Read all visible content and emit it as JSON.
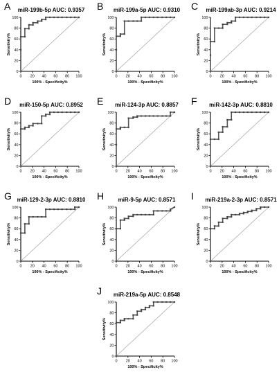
{
  "chart_data": [
    {
      "type": "line",
      "panel": "A",
      "title": "miR-199b-5p AUC: 0.9357",
      "xlabel": "100% - Specificity%",
      "ylabel": "Sensitivity%",
      "xlim": [
        0,
        100
      ],
      "ylim": [
        0,
        100
      ],
      "xticks": [
        0,
        20,
        40,
        60,
        80,
        100
      ],
      "yticks": [
        0,
        20,
        40,
        60,
        80,
        100
      ],
      "diagonal": true,
      "series": [
        {
          "x": [
            0,
            0,
            0,
            7,
            7,
            14,
            14,
            21,
            21,
            29,
            29,
            36,
            36,
            43,
            43,
            50,
            57,
            64,
            71,
            79,
            86,
            93,
            100
          ],
          "y": [
            0,
            40,
            64,
            64,
            79,
            79,
            86,
            86,
            90,
            90,
            93,
            93,
            96,
            96,
            100,
            100,
            100,
            100,
            100,
            100,
            100,
            100,
            100
          ]
        }
      ]
    },
    {
      "type": "line",
      "panel": "B",
      "title": "miR-199a-5p AUC: 0.9310",
      "xlabel": "100% - Specificity%",
      "ylabel": "Sensitivity%",
      "xlim": [
        0,
        100
      ],
      "ylim": [
        0,
        100
      ],
      "xticks": [
        0,
        20,
        40,
        60,
        80,
        100
      ],
      "yticks": [
        0,
        20,
        40,
        60,
        80,
        100
      ],
      "diagonal": true,
      "series": [
        {
          "x": [
            0,
            0,
            0,
            7,
            7,
            14,
            14,
            21,
            29,
            36,
            43,
            43,
            50,
            57,
            64,
            71,
            79,
            86,
            93,
            100
          ],
          "y": [
            0,
            40,
            65,
            65,
            69,
            69,
            93,
            93,
            93,
            93,
            93,
            100,
            100,
            100,
            100,
            100,
            100,
            100,
            100,
            100
          ]
        }
      ]
    },
    {
      "type": "line",
      "panel": "C",
      "title": "miR-199ab-3p AUC: 0.9214",
      "xlabel": "100% - Specificity%",
      "ylabel": "Sensitivity%",
      "xlim": [
        0,
        100
      ],
      "ylim": [
        0,
        100
      ],
      "xticks": [
        0,
        20,
        40,
        60,
        80,
        100
      ],
      "yticks": [
        0,
        20,
        40,
        60,
        80,
        100
      ],
      "diagonal": true,
      "series": [
        {
          "x": [
            0,
            0,
            0,
            7,
            7,
            14,
            21,
            21,
            29,
            29,
            36,
            36,
            43,
            43,
            50,
            57,
            64,
            71,
            79,
            86,
            93,
            100
          ],
          "y": [
            0,
            30,
            55,
            55,
            80,
            80,
            80,
            87,
            87,
            90,
            90,
            93,
            93,
            100,
            100,
            100,
            100,
            100,
            100,
            100,
            100,
            100
          ]
        }
      ]
    },
    {
      "type": "line",
      "panel": "D",
      "title": "miR-150-5p AUC: 0.8952",
      "xlabel": "100% - Specificity%",
      "ylabel": "Sensitivity%",
      "xlim": [
        0,
        100
      ],
      "ylim": [
        0,
        100
      ],
      "xticks": [
        0,
        20,
        40,
        60,
        80,
        100
      ],
      "yticks": [
        0,
        20,
        40,
        60,
        80,
        100
      ],
      "diagonal": true,
      "series": [
        {
          "x": [
            0,
            0,
            7,
            7,
            14,
            14,
            21,
            21,
            29,
            36,
            36,
            43,
            43,
            50,
            50,
            57,
            64,
            71,
            79,
            86,
            93,
            100
          ],
          "y": [
            0,
            69,
            69,
            72,
            72,
            75,
            75,
            79,
            79,
            79,
            93,
            93,
            96,
            96,
            100,
            100,
            100,
            100,
            100,
            100,
            100,
            100
          ]
        }
      ]
    },
    {
      "type": "line",
      "panel": "E",
      "title": "miR-124-3p AUC: 0.8857",
      "xlabel": "100% - Specificity%",
      "ylabel": "Sensitivity%",
      "xlim": [
        0,
        100
      ],
      "ylim": [
        0,
        100
      ],
      "xticks": [
        0,
        20,
        40,
        60,
        80,
        100
      ],
      "yticks": [
        0,
        20,
        40,
        60,
        80,
        100
      ],
      "diagonal": true,
      "series": [
        {
          "x": [
            0,
            0,
            0,
            7,
            7,
            14,
            21,
            21,
            29,
            29,
            36,
            36,
            43,
            50,
            57,
            64,
            71,
            79,
            86,
            93,
            93,
            100
          ],
          "y": [
            0,
            40,
            69,
            69,
            72,
            72,
            72,
            89,
            89,
            91,
            91,
            93,
            93,
            93,
            93,
            93,
            93,
            93,
            93,
            93,
            100,
            100
          ]
        }
      ]
    },
    {
      "type": "line",
      "panel": "F",
      "title": "miR-142-3p AUC: 0.8810",
      "xlabel": "100% - Specificity%",
      "ylabel": "Sensitivity%",
      "xlim": [
        0,
        100
      ],
      "ylim": [
        0,
        100
      ],
      "xticks": [
        0,
        20,
        40,
        60,
        80,
        100
      ],
      "yticks": [
        0,
        20,
        40,
        60,
        80,
        100
      ],
      "diagonal": true,
      "series": [
        {
          "x": [
            0,
            0,
            7,
            14,
            14,
            21,
            21,
            29,
            29,
            36,
            36,
            43,
            50,
            57,
            64,
            71,
            79,
            86,
            93,
            100
          ],
          "y": [
            0,
            50,
            50,
            50,
            63,
            63,
            73,
            73,
            86,
            86,
            100,
            100,
            100,
            100,
            100,
            100,
            100,
            100,
            100,
            100
          ]
        }
      ]
    },
    {
      "type": "line",
      "panel": "G",
      "title": "miR-129-2-3p AUC: 0.8810",
      "xlabel": "100% - Specificity%",
      "ylabel": "Sensitivity%",
      "xlim": [
        0,
        100
      ],
      "ylim": [
        0,
        100
      ],
      "xticks": [
        0,
        20,
        40,
        60,
        80,
        100
      ],
      "yticks": [
        0,
        20,
        40,
        60,
        80,
        100
      ],
      "diagonal": true,
      "series": [
        {
          "x": [
            0,
            0,
            7,
            7,
            14,
            14,
            21,
            29,
            36,
            43,
            43,
            50,
            57,
            64,
            71,
            79,
            86,
            93,
            93,
            100
          ],
          "y": [
            0,
            52,
            52,
            69,
            69,
            82,
            82,
            82,
            82,
            82,
            96,
            96,
            96,
            96,
            96,
            96,
            96,
            96,
            100,
            100
          ]
        }
      ]
    },
    {
      "type": "line",
      "panel": "H",
      "title": "miR-9-5p AUC: 0.8571",
      "xlabel": "100% - Specificity%",
      "ylabel": "Sensitivity%",
      "xlim": [
        0,
        100
      ],
      "ylim": [
        0,
        100
      ],
      "xticks": [
        0,
        20,
        40,
        60,
        80,
        100
      ],
      "yticks": [
        0,
        20,
        40,
        60,
        80,
        100
      ],
      "diagonal": true,
      "series": [
        {
          "x": [
            0,
            0,
            7,
            7,
            14,
            14,
            21,
            21,
            29,
            29,
            36,
            43,
            50,
            57,
            64,
            64,
            71,
            79,
            86,
            93,
            93,
            100
          ],
          "y": [
            0,
            60,
            60,
            76,
            76,
            79,
            79,
            83,
            83,
            86,
            86,
            86,
            86,
            86,
            86,
            93,
            93,
            93,
            93,
            93,
            96,
            100
          ]
        }
      ]
    },
    {
      "type": "line",
      "panel": "I",
      "title": "miR-219a-2-3p AUC: 0.8571",
      "xlabel": "100% - Specificity%",
      "ylabel": "Sensitivity%",
      "xlim": [
        0,
        100
      ],
      "ylim": [
        0,
        100
      ],
      "xticks": [
        0,
        20,
        40,
        60,
        80,
        100
      ],
      "yticks": [
        0,
        20,
        40,
        60,
        80,
        100
      ],
      "diagonal": true,
      "series": [
        {
          "x": [
            0,
            0,
            7,
            7,
            14,
            14,
            21,
            21,
            29,
            29,
            36,
            36,
            43,
            50,
            50,
            57,
            57,
            64,
            64,
            71,
            71,
            79,
            79,
            86,
            86,
            93,
            100
          ],
          "y": [
            0,
            60,
            60,
            65,
            65,
            72,
            72,
            79,
            79,
            82,
            82,
            86,
            86,
            86,
            88,
            88,
            90,
            90,
            92,
            92,
            94,
            94,
            97,
            97,
            100,
            100,
            100
          ]
        }
      ]
    },
    {
      "type": "line",
      "panel": "J",
      "title": "miR-219a-5p AUC: 0.8548",
      "xlabel": "100% - Specificity%",
      "ylabel": "Sensitivity%",
      "xlim": [
        0,
        100
      ],
      "ylim": [
        0,
        100
      ],
      "xticks": [
        0,
        20,
        40,
        60,
        80,
        100
      ],
      "yticks": [
        0,
        20,
        40,
        60,
        80,
        100
      ],
      "diagonal": true,
      "series": [
        {
          "x": [
            0,
            0,
            7,
            7,
            14,
            14,
            21,
            29,
            29,
            36,
            36,
            43,
            43,
            50,
            50,
            57,
            57,
            64,
            64,
            71,
            79,
            86,
            93,
            100
          ],
          "y": [
            0,
            62,
            62,
            66,
            66,
            69,
            69,
            69,
            76,
            76,
            83,
            83,
            86,
            86,
            90,
            90,
            93,
            93,
            100,
            100,
            100,
            100,
            100,
            100
          ]
        }
      ]
    }
  ]
}
